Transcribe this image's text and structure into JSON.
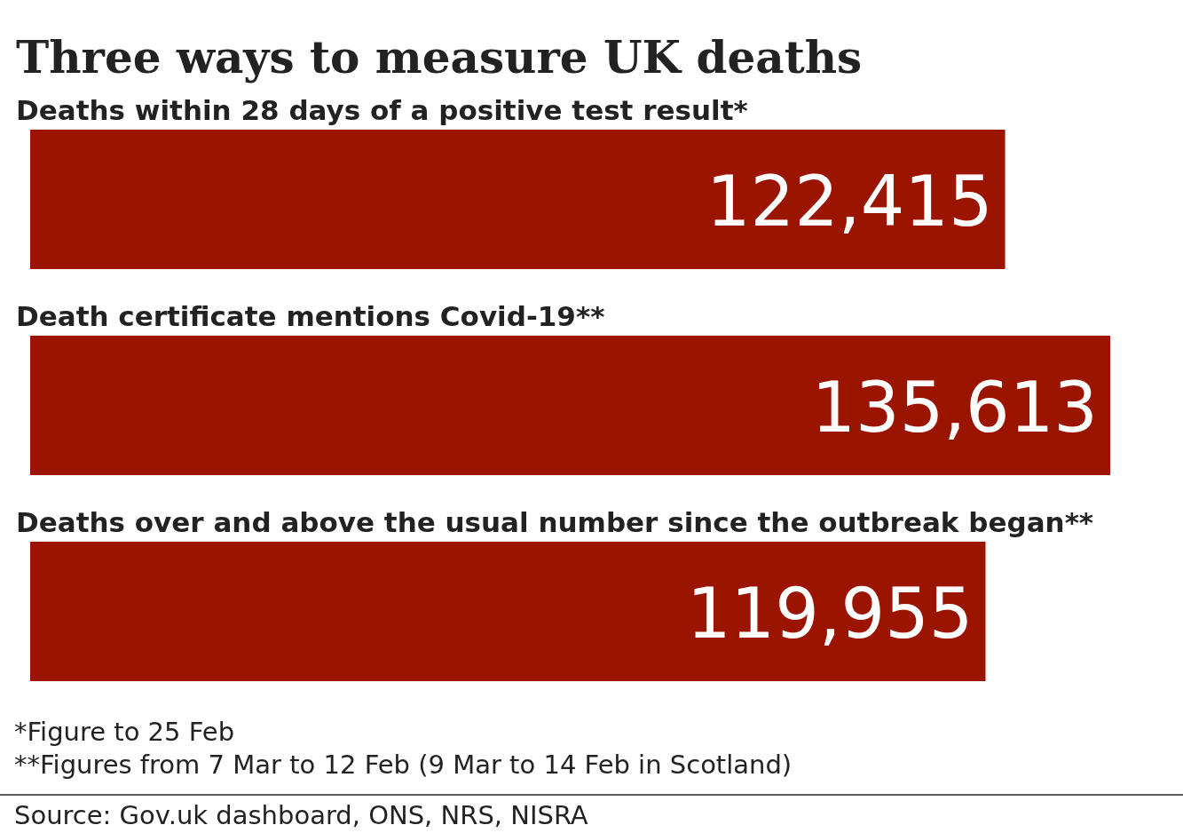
{
  "chart_data": {
    "type": "bar",
    "orientation": "horizontal",
    "title": "Three ways to measure UK deaths",
    "categories": [
      "Deaths within 28 days of a positive test result*",
      "Death certificate mentions Covid-19**",
      "Deaths over and above the usual number since the outbreak began**"
    ],
    "values": [
      122415,
      135613,
      119955
    ],
    "color": "#9b1400",
    "value_labels": [
      "122,415",
      "135,613",
      "119,955"
    ],
    "annotations": [
      "*Figure to 25 Feb",
      "**Figures from 7 Mar to 12 Feb (9 Mar to 14 Feb in Scotland)",
      "Source: Gov.uk dashboard, ONS, NRS, NISRA"
    ]
  }
}
